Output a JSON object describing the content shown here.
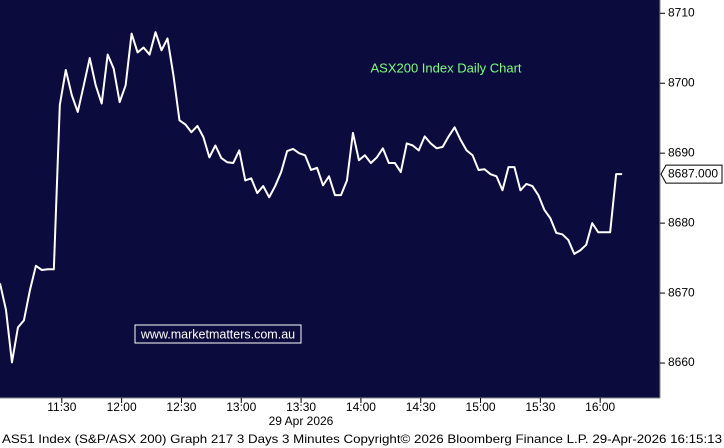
{
  "chart_data": {
    "type": "line",
    "title": "ASX200 Index Daily Chart",
    "watermark": "www.marketmatters.com.au",
    "date_label": "29 Apr 2026",
    "footer": "AS51 Index (S&P/ASX 200) Graph 217  3 Days 3 Minutes  Copyright© 2026 Bloomberg Finance L.P.   29-Apr-2026 16:15:13",
    "last_price": {
      "value": 8687,
      "label": "8687.000"
    },
    "x": [
      659,
      662,
      665,
      668,
      671,
      674,
      677,
      680,
      683,
      686,
      689,
      692,
      695,
      698,
      701,
      704,
      707,
      710,
      713,
      716,
      719,
      722,
      725,
      728,
      731,
      734,
      737,
      740,
      743,
      746,
      749,
      752,
      755,
      758,
      761,
      764,
      767,
      770,
      773,
      776,
      779,
      782,
      785,
      788,
      791,
      794,
      797,
      800,
      803,
      806,
      809,
      812,
      815,
      818,
      821,
      824,
      827,
      830,
      833,
      836,
      839,
      842,
      845,
      848,
      851,
      854,
      857,
      860,
      863,
      866,
      869,
      872,
      875,
      878,
      881,
      884,
      887,
      890,
      893,
      896,
      899,
      902,
      905,
      908,
      911,
      914,
      917,
      920,
      923,
      926,
      929,
      932,
      935,
      938,
      941,
      944,
      947,
      950,
      953,
      956,
      959,
      962,
      965,
      968,
      971
    ],
    "series": [
      {
        "color": "#ffffff",
        "values": [
          8671.4,
          8667.6,
          8660.1,
          8665.1,
          8666.1,
          8670.4,
          8673.9,
          8673.3,
          8673.4,
          8673.4,
          8696.9,
          8701.9,
          8698.3,
          8695.9,
          8699.7,
          8703.6,
          8699.7,
          8697.1,
          8704.1,
          8702.1,
          8697.3,
          8699.7,
          8707.1,
          8704.4,
          8705.1,
          8704.1,
          8707.3,
          8704.7,
          8706.4,
          8701.1,
          8694.7,
          8694.1,
          8693.0,
          8693.9,
          8692.3,
          8689.4,
          8691.1,
          8689.3,
          8688.7,
          8688.6,
          8690.4,
          8686.1,
          8686.4,
          8684.3,
          8685.3,
          8683.7,
          8685.3,
          8687.3,
          8690.3,
          8690.6,
          8690.0,
          8689.7,
          8687.6,
          8687.9,
          8685.4,
          8686.7,
          8684.0,
          8684.0,
          8686.1,
          8692.9,
          8689.0,
          8689.7,
          8688.6,
          8689.4,
          8690.7,
          8688.6,
          8688.6,
          8687.3,
          8691.4,
          8691.1,
          8690.4,
          8692.4,
          8691.4,
          8690.7,
          8690.9,
          8692.4,
          8693.7,
          8691.9,
          8690.4,
          8689.7,
          8687.6,
          8687.7,
          8687.0,
          8686.7,
          8684.7,
          8688.0,
          8688.0,
          8684.7,
          8685.6,
          8685.3,
          8684.0,
          8681.9,
          8680.7,
          8678.6,
          8678.4,
          8677.6,
          8675.6,
          8676.1,
          8676.9,
          8680.0,
          8678.7,
          8678.7,
          8678.7,
          8687.0,
          8687.0
        ]
      }
    ],
    "xlim": [
      659,
      990
    ],
    "xticks": [
      {
        "value": 690,
        "label": "11:30"
      },
      {
        "value": 720,
        "label": "12:00"
      },
      {
        "value": 750,
        "label": "12:30"
      },
      {
        "value": 780,
        "label": "13:00"
      },
      {
        "value": 810,
        "label": "13:30"
      },
      {
        "value": 840,
        "label": "14:00"
      },
      {
        "value": 870,
        "label": "14:30"
      },
      {
        "value": 900,
        "label": "15:00"
      },
      {
        "value": 930,
        "label": "15:30"
      },
      {
        "value": 960,
        "label": "16:00"
      }
    ],
    "ylim": [
      8655,
      8711.9
    ],
    "yticks": [
      8660,
      8670,
      8680,
      8690,
      8700,
      8710
    ],
    "background": "#0b0b3e"
  }
}
